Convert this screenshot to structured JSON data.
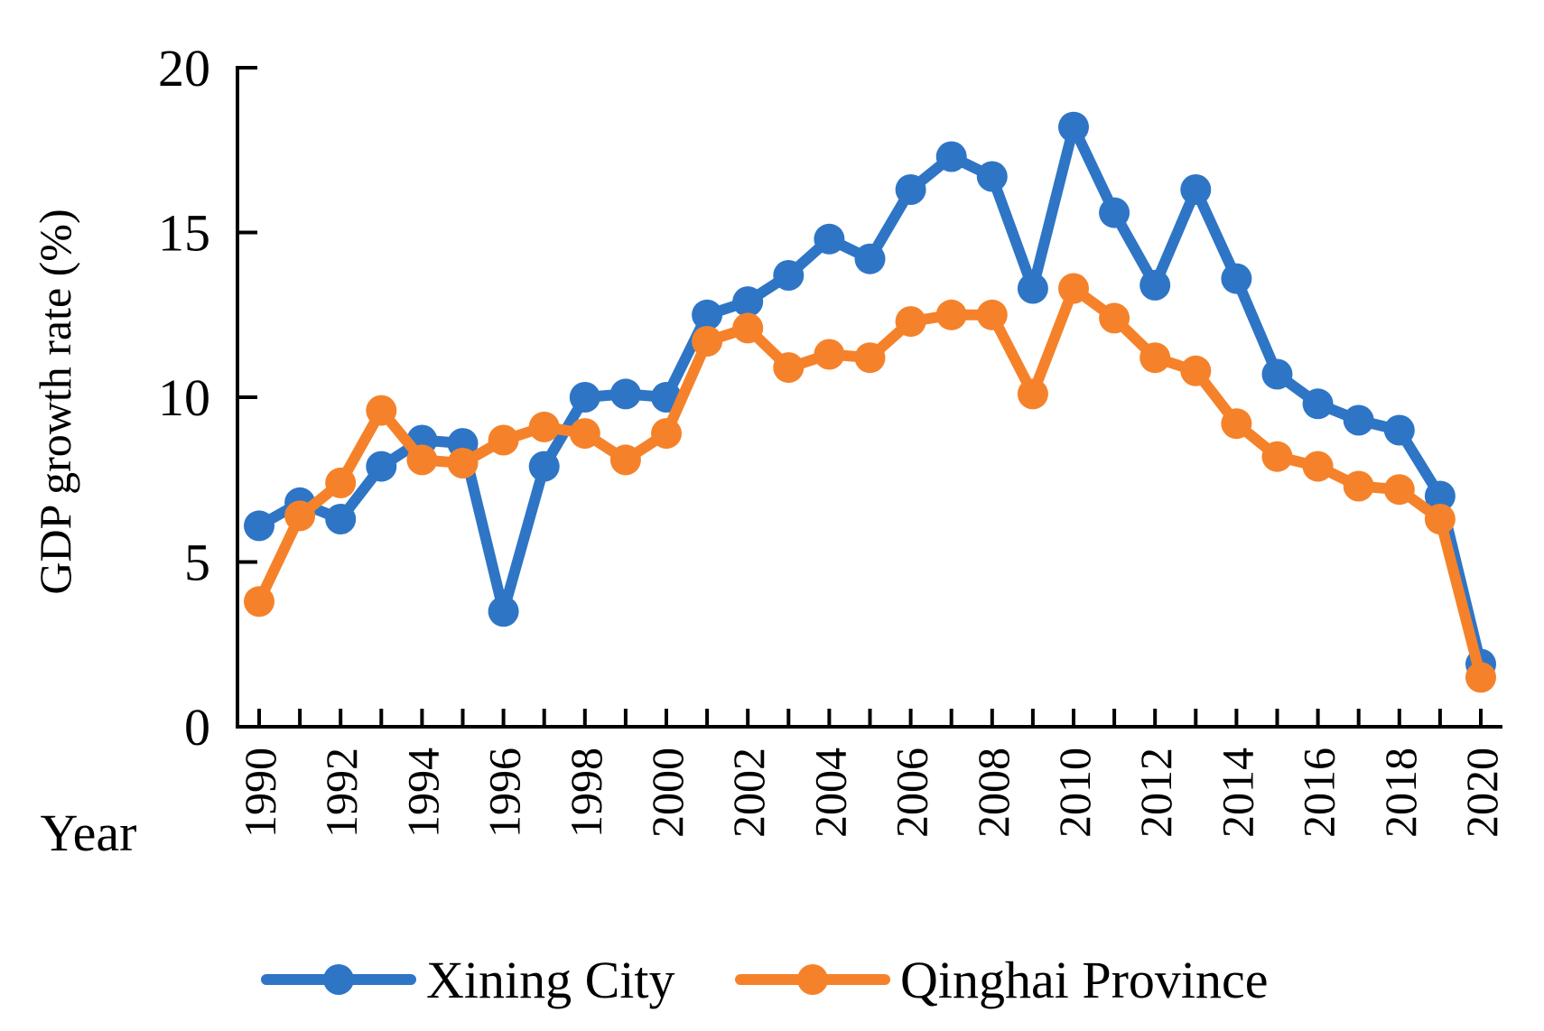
{
  "chart_data": {
    "type": "line",
    "title": "",
    "xlabel": "Year",
    "ylabel": "GDP growth rate (%)",
    "ylim": [
      0,
      20
    ],
    "yticks": [
      "0",
      "5",
      "10",
      "15",
      "20"
    ],
    "xticks": [
      "1990",
      "1992",
      "1994",
      "1996",
      "1998",
      "2000",
      "2002",
      "2004",
      "2006",
      "2008",
      "2010",
      "2012",
      "2014",
      "2016",
      "2018",
      "2020"
    ],
    "x": [
      1990,
      1991,
      1992,
      1993,
      1994,
      1995,
      1996,
      1997,
      1998,
      1999,
      2000,
      2001,
      2002,
      2003,
      2004,
      2005,
      2006,
      2007,
      2008,
      2009,
      2010,
      2011,
      2012,
      2013,
      2014,
      2015,
      2016,
      2017,
      2018,
      2019,
      2020
    ],
    "grid": false,
    "legend_position": "bottom",
    "series": [
      {
        "name": "Xining City",
        "color": "#2E75C6",
        "values": [
          6.1,
          6.8,
          6.3,
          7.9,
          8.7,
          8.6,
          3.5,
          7.9,
          10.0,
          10.1,
          10.0,
          12.5,
          12.9,
          13.7,
          14.8,
          14.2,
          16.3,
          17.3,
          16.7,
          13.3,
          18.2,
          15.6,
          13.4,
          16.3,
          13.6,
          10.7,
          9.8,
          9.3,
          9.0,
          7.0,
          1.9
        ]
      },
      {
        "name": "Qinghai Province",
        "color": "#F5822A",
        "values": [
          3.8,
          6.4,
          7.4,
          9.6,
          8.1,
          8.0,
          8.7,
          9.1,
          8.9,
          8.1,
          8.9,
          11.7,
          12.1,
          10.9,
          11.3,
          11.2,
          12.3,
          12.5,
          12.5,
          10.1,
          13.3,
          12.4,
          11.2,
          10.8,
          9.2,
          8.2,
          7.9,
          7.3,
          7.2,
          6.3,
          1.5
        ]
      }
    ]
  }
}
